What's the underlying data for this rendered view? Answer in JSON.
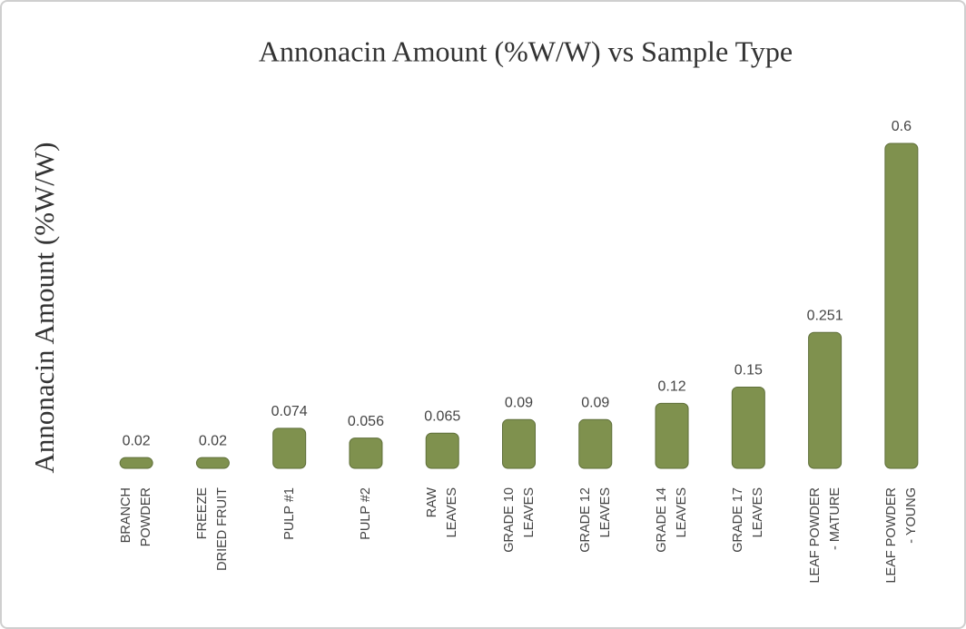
{
  "chart_data": {
    "type": "bar",
    "title": "Annonacin Amount (%W/W) vs Sample Type",
    "y_label": "Annonacin Amount (%W/W)",
    "categories": [
      "BRANCH\nPOWDER",
      "FREEZE\nDRIED FRUIT",
      "PULP #1",
      "PULP #2",
      "RAW\nLEAVES",
      "GRADE 10\nLEAVES",
      "GRADE 12\nLEAVES",
      "GRADE 14\nLEAVES",
      "GRADE 17\nLEAVES",
      "LEAF POWDER\n- MATURE",
      "LEAF POWDER\n- YOUNG"
    ],
    "values": [
      0.02,
      0.02,
      0.074,
      0.056,
      0.065,
      0.09,
      0.09,
      0.12,
      0.15,
      0.251,
      0.6
    ],
    "color": "#7f914e",
    "ylim": [
      0,
      0.6
    ]
  }
}
